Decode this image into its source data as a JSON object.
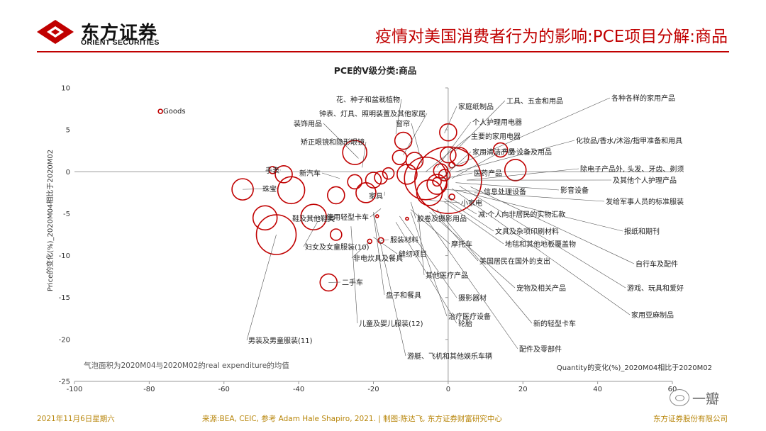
{
  "header": {
    "logo_cn": "东方证券",
    "logo_en": "ORIENT SECURITIES",
    "title": "疫情对美国消费者行为的影响:PCE项目分解:商品"
  },
  "footer": {
    "date": "2021年11月6日星期六",
    "source": "来源:BEA, CEIC, 参考 Adam Hale Shapiro, 2021. | 制图:陈达飞, 东方证券财富研究中心",
    "company": "东方证券股份有限公司"
  },
  "watermark": "一瓣",
  "colors": {
    "brand": "#c00000",
    "bubble": "#c00000",
    "footer": "#b8860b"
  },
  "chart_data": {
    "type": "scatter",
    "title": "PCE的V级分类:商品",
    "xlabel": "Quantity的变化(%)_2020M04相比于2020M02",
    "ylabel": "Price的变化(%)_2020M04相比于2020M02",
    "xlim": [
      -100,
      60
    ],
    "ylim": [
      -25,
      10
    ],
    "xticks": [
      -100,
      -80,
      -60,
      -40,
      -20,
      0,
      20,
      40,
      60
    ],
    "yticks": [
      -25,
      -20,
      -15,
      -10,
      -5,
      0,
      5,
      10
    ],
    "note": "气泡面积为2020M04与2020M02的real expenditure的均值",
    "grid": false,
    "legend": "none",
    "points": [
      {
        "x": -77,
        "y": 7.2
      },
      {
        "x": -47,
        "y": 0.2
      },
      {
        "x": -44,
        "y": -0.3
      },
      {
        "x": -42,
        "y": -2.2
      },
      {
        "x": -55,
        "y": -2.1
      },
      {
        "x": -49,
        "y": -5.5
      },
      {
        "x": -46,
        "y": -7.5
      },
      {
        "x": -36,
        "y": -5.4
      },
      {
        "x": -30,
        "y": -7.5
      },
      {
        "x": -30,
        "y": -2.8
      },
      {
        "x": -25,
        "y": 2.3
      },
      {
        "x": -22,
        "y": -2.5
      },
      {
        "x": -25,
        "y": -1.2
      },
      {
        "x": -20,
        "y": -1.0
      },
      {
        "x": -18,
        "y": -0.7
      },
      {
        "x": -16,
        "y": -0.2
      },
      {
        "x": -13,
        "y": 1.7
      },
      {
        "x": -12,
        "y": 3.7
      },
      {
        "x": -11,
        "y": -0.3
      },
      {
        "x": -9,
        "y": 1.3
      },
      {
        "x": -6,
        "y": -0.8
      },
      {
        "x": -5,
        "y": -2.5
      },
      {
        "x": -3,
        "y": -1.5
      },
      {
        "x": -2,
        "y": 0.1
      },
      {
        "x": 0,
        "y": 4.7
      },
      {
        "x": 0,
        "y": 2.0
      },
      {
        "x": -1,
        "y": -0.4
      },
      {
        "x": -3,
        "y": -1.2
      },
      {
        "x": 0,
        "y": -1.0
      },
      {
        "x": 3,
        "y": 1.8
      },
      {
        "x": 14,
        "y": 2.6
      },
      {
        "x": 18,
        "y": 0.2
      },
      {
        "x": 1,
        "y": 0.8
      },
      {
        "x": 1,
        "y": -3.0
      },
      {
        "x": -21,
        "y": -8.3
      },
      {
        "x": -18,
        "y": -8.2
      },
      {
        "x": -11,
        "y": -5.6
      },
      {
        "x": -32,
        "y": -13.2
      },
      {
        "x": -19,
        "y": -5.3
      }
    ],
    "annotations": [
      {
        "text": "Goods"
      },
      {
        "text": "花、种子和盆栽植物"
      },
      {
        "text": "家庭纸制品"
      },
      {
        "text": "工具、五金和用品"
      },
      {
        "text": "各种各样的家用产品"
      },
      {
        "text": "钟表、灯具、照明装置及其他家居"
      },
      {
        "text": "窗帘"
      },
      {
        "text": "个人护理用电器"
      },
      {
        "text": "装饰用品"
      },
      {
        "text": "主要的家用电器"
      },
      {
        "text": "化妆品/香水/沐浴/指甲准备和用具"
      },
      {
        "text": "矫正眼镜和隐形眼镜"
      },
      {
        "text": "家用清洁产品"
      },
      {
        "text": "户外设备及用品"
      },
      {
        "text": "手表"
      },
      {
        "text": "新汽车"
      },
      {
        "text": "医药产品"
      },
      {
        "text": "除电子产品外, 头发、牙齿、剃须"
      },
      {
        "text": "及其他个人护理产品"
      },
      {
        "text": "珠宝"
      },
      {
        "text": "影音设备"
      },
      {
        "text": "信息处理设备"
      },
      {
        "text": "家具"
      },
      {
        "text": "发给军事人员的标准服装"
      },
      {
        "text": "小家电"
      },
      {
        "text": "使用轻型卡车"
      },
      {
        "text": "减:个人向非居民的实物汇款"
      },
      {
        "text": "鞋及其他鞋类"
      },
      {
        "text": "胶卷及摄影用品"
      },
      {
        "text": "报纸和期刊"
      },
      {
        "text": "文具及杂项印刷材料"
      },
      {
        "text": "服装材料"
      },
      {
        "text": "妇女及女童服装(10)"
      },
      {
        "text": "摩托车"
      },
      {
        "text": "地毯和其他地板覆盖物"
      },
      {
        "text": "缝纫项目"
      },
      {
        "text": "非电炊具及餐具"
      },
      {
        "text": "美国居民在国外的支出"
      },
      {
        "text": "自行车及配件"
      },
      {
        "text": "其他医疗产品"
      },
      {
        "text": "宠物及相关产品"
      },
      {
        "text": "游戏、玩具和爱好"
      },
      {
        "text": "二手车"
      },
      {
        "text": "盘子和餐具"
      },
      {
        "text": "摄影器材"
      },
      {
        "text": "家用亚麻制品"
      },
      {
        "text": "治疗医疗设备"
      },
      {
        "text": "新的轻型卡车"
      },
      {
        "text": "儿童及婴儿服装(12)"
      },
      {
        "text": "男装及男童服装(11)"
      },
      {
        "text": "轮胎"
      },
      {
        "text": "配件及零部件"
      },
      {
        "text": "游艇、飞机和其他娱乐车辆"
      }
    ]
  }
}
